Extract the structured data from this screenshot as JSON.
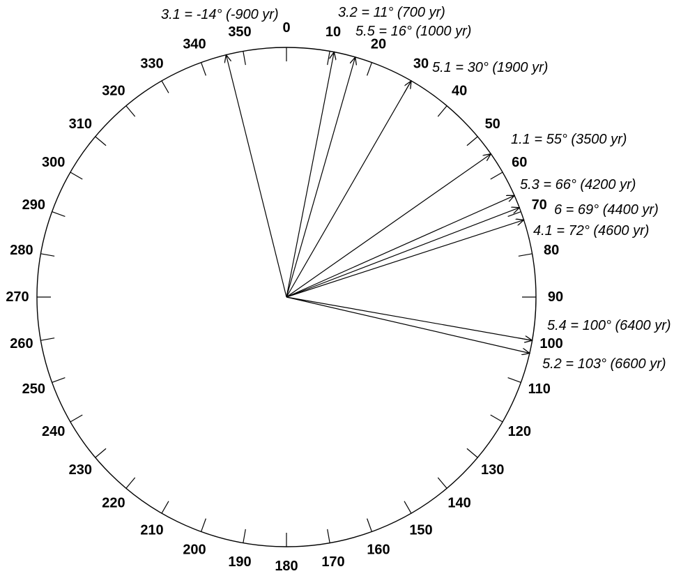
{
  "dial": {
    "degree_labels": [
      "0",
      "10",
      "20",
      "30",
      "40",
      "50",
      "60",
      "70",
      "80",
      "90",
      "100",
      "110",
      "120",
      "130",
      "140",
      "150",
      "160",
      "170",
      "180",
      "190",
      "200",
      "210",
      "220",
      "230",
      "240",
      "250",
      "260",
      "270",
      "280",
      "290",
      "300",
      "310",
      "320",
      "330",
      "340",
      "350"
    ]
  },
  "vectors": [
    {
      "id": "3.1",
      "angle_deg": -14,
      "label": "3.1 = -14° (-900 yr)"
    },
    {
      "id": "3.2",
      "angle_deg": 11,
      "label": "3.2 = 11° (700 yr)"
    },
    {
      "id": "5.5",
      "angle_deg": 16,
      "label": "5.5 = 16° (1000 yr)"
    },
    {
      "id": "5.1",
      "angle_deg": 30,
      "label": "5.1 = 30° (1900 yr)"
    },
    {
      "id": "1.1",
      "angle_deg": 55,
      "label": "1.1 = 55° (3500 yr)"
    },
    {
      "id": "5.3",
      "angle_deg": 66,
      "label": "5.3 = 66° (4200 yr)"
    },
    {
      "id": "6",
      "angle_deg": 69,
      "label": "6 = 69° (4400 yr)"
    },
    {
      "id": "4.1",
      "angle_deg": 72,
      "label": "4.1 = 72° (4600 yr)"
    },
    {
      "id": "5.4",
      "angle_deg": 100,
      "label": "5.4 = 100° (6400 yr)"
    },
    {
      "id": "5.2",
      "angle_deg": 103,
      "label": "5.2 = 103° (6600 yr)"
    }
  ]
}
